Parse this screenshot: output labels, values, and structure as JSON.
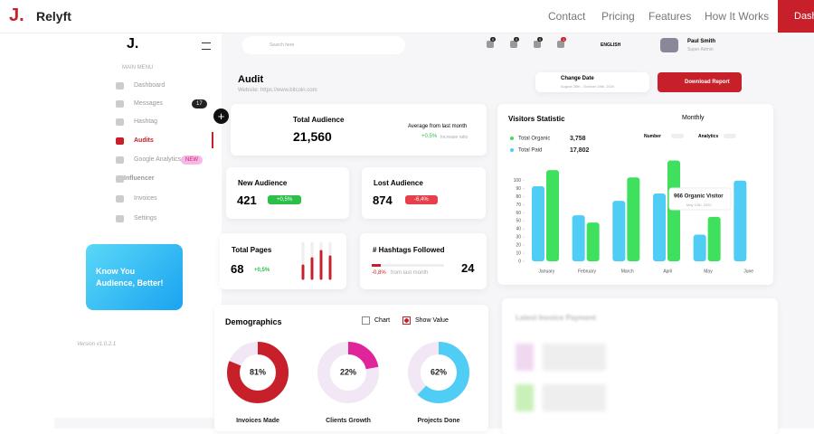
{
  "nav": {
    "brand": "Relyft",
    "links": [
      "Contact",
      "Pricing",
      "Features",
      "How It Works"
    ],
    "cta": "Dash"
  },
  "sidebar": {
    "menu_title": "MAIN MENU",
    "items": [
      "Dashboard",
      "Messages",
      "Hashtag",
      "Audits",
      "Google Analytics",
      "Influencer",
      "Invoices",
      "Settings"
    ],
    "messages_badge": "17",
    "new_badge": "NEW",
    "promo": "Know You Audience, Better!",
    "version": "Version v1.0.2.1"
  },
  "topbar": {
    "search": "Search here",
    "notifications": [
      "0",
      "0",
      "0",
      "1"
    ],
    "language": "ENGLISH",
    "user_name": "Paul Smith",
    "user_role": "Super Admin"
  },
  "audit": {
    "title": "Audit",
    "website": "Website: https://www.bitcoin.com",
    "change_date": "Change Date",
    "date_range": "August 28th - October 28th, 2020",
    "download": "Download Report"
  },
  "total_audience": {
    "label": "Total Audience",
    "value": "21,560",
    "compare": "Average from last month",
    "change": "+0,5%",
    "change_note": "Increase ratio"
  },
  "new_audience": {
    "label": "New Audience",
    "value": "421",
    "change": "+0,5%"
  },
  "lost_audience": {
    "label": "Lost Audience",
    "value": "874",
    "change": "-6,4%"
  },
  "total_pages": {
    "label": "Total Pages",
    "value": "68",
    "change": "+0,5%"
  },
  "hashtags": {
    "label": "# Hashtags Followed",
    "value": "24",
    "change": "-0,8%",
    "change_note": "from last month"
  },
  "visitors": {
    "title": "Visitors Statistic",
    "period": "Monthly",
    "toggles": [
      "Number",
      "Analytics"
    ],
    "totals": [
      "17,802",
      "3,758"
    ],
    "categories": [
      "January",
      "February",
      "March",
      "April",
      "May",
      "June"
    ],
    "series": [
      {
        "name": "Total Paid",
        "color": "#4fcdf5",
        "values": [
          93,
          57,
          75,
          84,
          33,
          100
        ]
      },
      {
        "name": "Total Organic",
        "color": "#3ee05d",
        "values": [
          113,
          48,
          104,
          125,
          55,
          null
        ]
      }
    ],
    "ylim": [
      0,
      130
    ],
    "yticks": [
      0,
      10,
      20,
      30,
      40,
      50,
      60,
      70,
      80,
      90,
      100
    ],
    "tooltip": {
      "title": "966 Organic Visitor",
      "date": "May 12th, 2020"
    }
  },
  "demographics": {
    "title": "Demographics",
    "options": [
      "Chart",
      "Show Value"
    ],
    "items": [
      {
        "label": "Invoices Made",
        "value": 81,
        "value_label": "81%",
        "color": "#c8202a"
      },
      {
        "label": "Clients Growth",
        "value": 22,
        "value_label": "22%",
        "color": "#e0259b"
      },
      {
        "label": "Projects Done",
        "value": 62,
        "value_label": "62%",
        "color": "#4fcdf5"
      }
    ]
  },
  "invoices": {
    "title": "Latest Invoice Payment"
  }
}
